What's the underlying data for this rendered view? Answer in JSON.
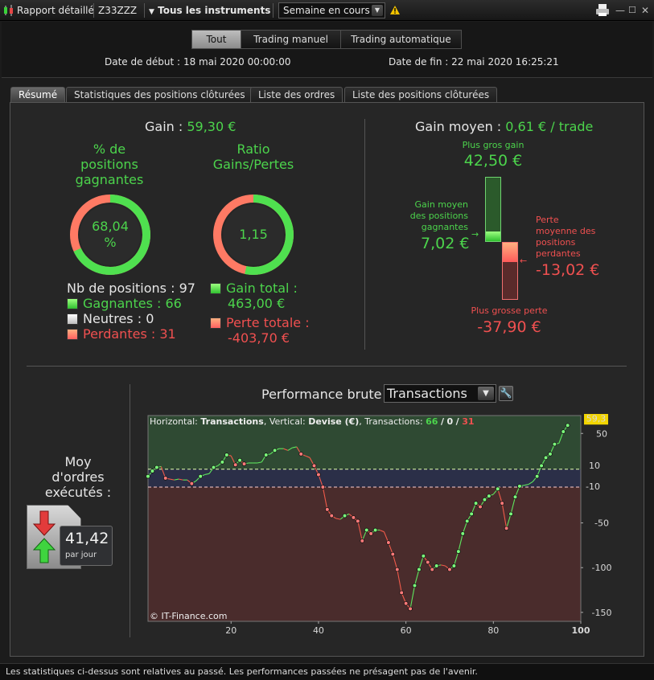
{
  "titlebar": {
    "report_label": "Rapport détaillé",
    "account": "Z33ZZZ",
    "instruments": "Tous les instruments",
    "period": "Semaine en cours"
  },
  "period_tabs": [
    "Tout",
    "Trading manuel",
    "Trading automatique"
  ],
  "dates": {
    "start_label": "Date de début :",
    "start_value": "18 mai 2020 00:00:00",
    "end_label": "Date de fin :",
    "end_value": "22 mai 2020 16:25:21"
  },
  "sub_tabs": [
    "Résumé",
    "Statistiques des positions clôturées",
    "Liste des ordres",
    "Liste des positions clôturées"
  ],
  "summary": {
    "gain_label": "Gain :",
    "gain_value": "59,30 €",
    "win_pct_title_1": "% de",
    "win_pct_title_2": "positions",
    "win_pct_title_3": "gagnantes",
    "win_pct_value": "68,04",
    "win_pct_unit": "%",
    "win_pct_fraction": 0.6804,
    "ratio_title_1": "Ratio",
    "ratio_title_2": "Gains/Pertes",
    "ratio_value": "1,15",
    "ratio_green_fraction": 0.534,
    "nb_positions": "Nb de positions : 97",
    "winners": "Gagnantes : 66",
    "neutral": "Neutres : 0",
    "losers": "Perdantes : 31",
    "total_gain_label": "Gain total :",
    "total_gain_value": "463,00 €",
    "total_loss_label": "Perte totale :",
    "total_loss_value": "-403,70 €"
  },
  "avg": {
    "gain_label": "Gain moyen :",
    "gain_value": "0,61 € / trade",
    "best_label": "Plus gros gain",
    "best_value": "42,50 €",
    "avg_win_l1": "Gain moyen",
    "avg_win_l2": "des positions",
    "avg_win_l3": "gagnantes",
    "avg_win_value": "7,02 €",
    "avg_loss_l1": "Perte",
    "avg_loss_l2": "moyenne des",
    "avg_loss_l3": "positions",
    "avg_loss_l4": "perdantes",
    "avg_loss_value": "-13,02 €",
    "worst_label": "Plus grosse perte",
    "worst_value": "-37,90 €"
  },
  "orders": {
    "title_1": "Moy",
    "title_2": "d'ordres",
    "title_3": "exécutés :",
    "value": "41,42",
    "unit": "par jour"
  },
  "performance": {
    "label": "Performance brute",
    "select_value": "Transactions",
    "legend_h_label": "Horizontal:",
    "legend_h_value": "Transactions",
    "legend_v_label": "Vertical:",
    "legend_v_value": "Devise (€)",
    "legend_t_label": "Transactions:",
    "legend_t_win": "66",
    "legend_t_sep": "/",
    "legend_t_neutral": "0",
    "legend_t_loss": "31",
    "watermark": "© IT-Finance.com",
    "last_value_tag": "59,3",
    "upper_band_tag": "10",
    "lower_band_tag": "-10"
  },
  "colors": {
    "accent_green": "#4cd44c",
    "accent_red": "#f05050",
    "profit_zone": "#2f4a33",
    "loss_zone": "#4a2c2c"
  },
  "chart_data": {
    "type": "line",
    "xlabel": "",
    "ylabel": "",
    "xlim": [
      1,
      100
    ],
    "ylim": [
      -160,
      70
    ],
    "x_ticks": [
      20,
      40,
      60,
      80,
      100
    ],
    "y_ticks": [
      50,
      -50,
      -100,
      -150
    ],
    "bands": [
      10,
      -10
    ],
    "series": [
      {
        "x": [
          1,
          2,
          3,
          4,
          5,
          6,
          7,
          8,
          9,
          10,
          11,
          12,
          13,
          14,
          15,
          16,
          17,
          18,
          19,
          20,
          21,
          22,
          23,
          24,
          25,
          26,
          27,
          28,
          29,
          30,
          31,
          32,
          33,
          34,
          35,
          36,
          37,
          38,
          39,
          40,
          41,
          42,
          43,
          44,
          45,
          46,
          47,
          48,
          49,
          50,
          51,
          52,
          53,
          54,
          55,
          56,
          57,
          58,
          59,
          60,
          61,
          62,
          63,
          64,
          65,
          66,
          67,
          68,
          69,
          70,
          71,
          72,
          73,
          74,
          75,
          76,
          77,
          78,
          79,
          80,
          81,
          82,
          83,
          84,
          85,
          86,
          87,
          88,
          89,
          90,
          91,
          92,
          93,
          94,
          95,
          96,
          97
        ],
        "y": [
          2,
          8,
          12,
          13,
          0,
          -1,
          -2,
          -1,
          -2,
          -2,
          -6,
          -3,
          2,
          4,
          5,
          12,
          14,
          18,
          26,
          25,
          15,
          20,
          16,
          17,
          17,
          17,
          18,
          26,
          27,
          31,
          33,
          33,
          31,
          34,
          35,
          27,
          25,
          23,
          14,
          4,
          -10,
          -35,
          -42,
          -45,
          -46,
          -42,
          -40,
          -44,
          -48,
          -70,
          -58,
          -62,
          -58,
          -58,
          -60,
          -72,
          -85,
          -102,
          -128,
          -140,
          -146,
          -120,
          -102,
          -87,
          -94,
          -102,
          -98,
          -97,
          -98,
          -102,
          -98,
          -82,
          -62,
          -48,
          -40,
          -28,
          -32,
          -24,
          -20,
          -18,
          -12,
          -28,
          -56,
          -40,
          -21,
          -9,
          -8,
          -7,
          -4,
          2,
          14,
          23,
          27,
          38,
          39,
          52,
          59
        ]
      }
    ]
  }
}
